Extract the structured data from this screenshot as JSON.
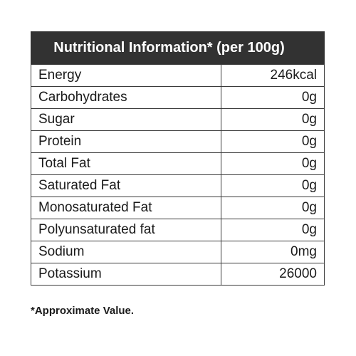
{
  "header": {
    "title": "Nutritional Information* (per 100g)"
  },
  "rows": [
    {
      "label": "Energy",
      "value": "246kcal"
    },
    {
      "label": "Carbohydrates",
      "value": "0g"
    },
    {
      "label": "Sugar",
      "value": "0g"
    },
    {
      "label": "Protein",
      "value": "0g"
    },
    {
      "label": "Total Fat",
      "value": "0g"
    },
    {
      "label": "Saturated Fat",
      "value": "0g"
    },
    {
      "label": "Monosaturated Fat",
      "value": "0g"
    },
    {
      "label": "Polyunsaturated fat",
      "value": "0g"
    },
    {
      "label": "Sodium",
      "value": "0mg"
    },
    {
      "label": "Potassium",
      "value": "26000"
    }
  ],
  "footnote": "*Approximate Value.",
  "colors": {
    "header_background": "#323232",
    "header_text": "#ffffff",
    "border": "#3a3a3a"
  }
}
